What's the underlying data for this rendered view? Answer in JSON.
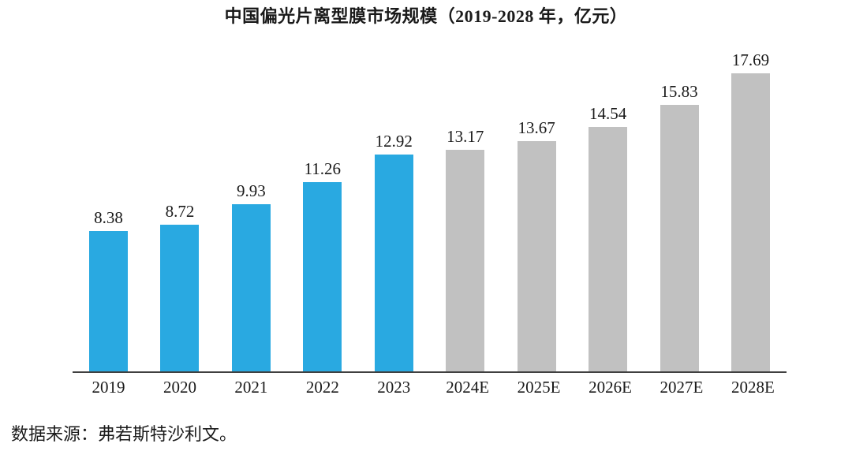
{
  "chart_data": {
    "type": "bar",
    "title": "中国偏光片离型膜市场规模（2019-2028 年，亿元）",
    "categories": [
      "2019",
      "2020",
      "2021",
      "2022",
      "2023",
      "2024E",
      "2025E",
      "2026E",
      "2027E",
      "2028E"
    ],
    "values": [
      8.38,
      8.72,
      9.93,
      11.26,
      12.92,
      13.17,
      13.67,
      14.54,
      15.83,
      17.69
    ],
    "value_labels": [
      "8.38",
      "8.72",
      "9.93",
      "11.26",
      "12.92",
      "13.17",
      "13.67",
      "14.54",
      "15.83",
      "17.69"
    ],
    "forecast_from_index": 5,
    "colors": {
      "historical_bar": "#29a9e1",
      "forecast_bar": "#c1c1c1",
      "axis_line": "#404040",
      "text": "#1a1a1a"
    },
    "layout_hints": {
      "data_labels_shown": true,
      "y_axis_visible": false,
      "gridlines": false,
      "legend": "none",
      "ylim": [
        0,
        19.4
      ]
    }
  },
  "source_note": "数据来源：弗若斯特沙利文。"
}
